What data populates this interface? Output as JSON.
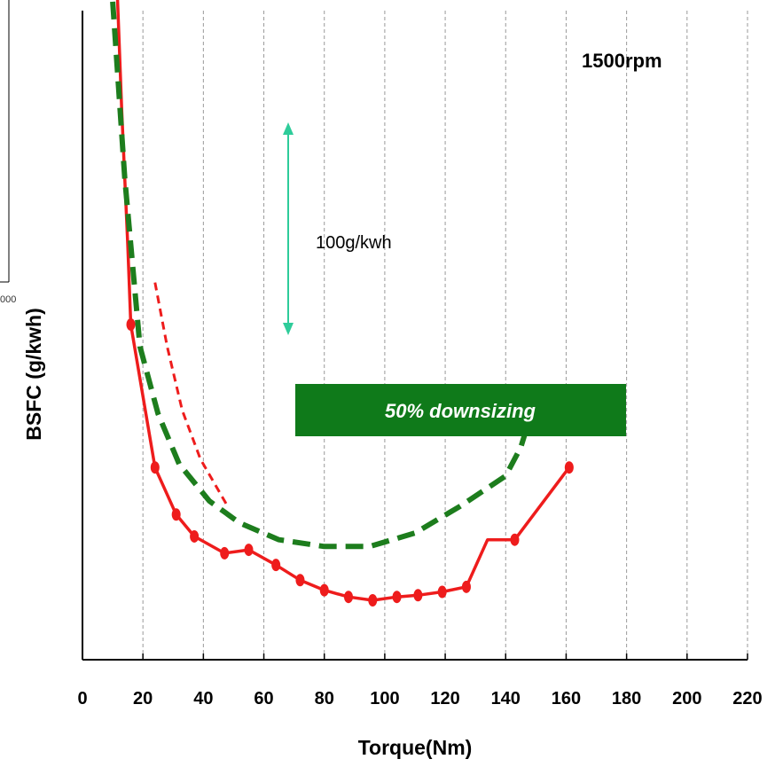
{
  "chart_data": {
    "type": "line",
    "title": "",
    "xlabel": "Torque(Nm)",
    "ylabel": "BSFC (g/kwh)",
    "xlim": [
      0,
      220
    ],
    "x_ticks": [
      "0",
      "20",
      "40",
      "60",
      "80",
      "100",
      "120",
      "140",
      "160",
      "180",
      "200",
      "220"
    ],
    "grid": {
      "vertical": true,
      "horizontal": false
    },
    "y_scale_units": "g/kwh",
    "scale_bar_value": 100,
    "speed_label": "1500rpm",
    "scale_bar_label": "100g/kwh",
    "box_label": "50% downsizing",
    "partial_left_label": "000",
    "colors": {
      "red": "#ee1c1c",
      "green": "#1d7d1d",
      "scale_arrow": "#2ecc9a",
      "box_fill": "#0f7a1a",
      "grid": "#9a9a9a"
    },
    "series": [
      {
        "style": "red-solid-markers",
        "x": [
          16,
          24,
          31,
          37,
          47,
          55,
          64,
          72,
          80,
          88,
          96,
          104,
          111,
          119,
          127,
          134,
          143,
          161
        ],
        "y": [
          433,
          348,
          320,
          307,
          297,
          299,
          290,
          281,
          275,
          271,
          269,
          271,
          272,
          274,
          277,
          305,
          305,
          348
        ],
        "markers": [
          true,
          true,
          true,
          true,
          true,
          true,
          true,
          true,
          true,
          true,
          true,
          true,
          true,
          true,
          true,
          false,
          true,
          true
        ]
      },
      {
        "style": "red-solid-steep-start",
        "x": [
          11,
          13,
          15,
          16
        ],
        "y": [
          655,
          560,
          480,
          433
        ]
      },
      {
        "style": "red-thin-dashed",
        "x": [
          24,
          28,
          33,
          39,
          48
        ],
        "y": [
          458,
          420,
          382,
          353,
          325
        ]
      },
      {
        "style": "green-dashed",
        "x": [
          10,
          14,
          19,
          25,
          32,
          42,
          52,
          65,
          80,
          95,
          110,
          125,
          140,
          145,
          150
        ],
        "y": [
          625,
          520,
          420,
          380,
          350,
          328,
          315,
          305,
          301,
          301,
          309,
          325,
          343,
          360,
          389
        ]
      }
    ]
  }
}
